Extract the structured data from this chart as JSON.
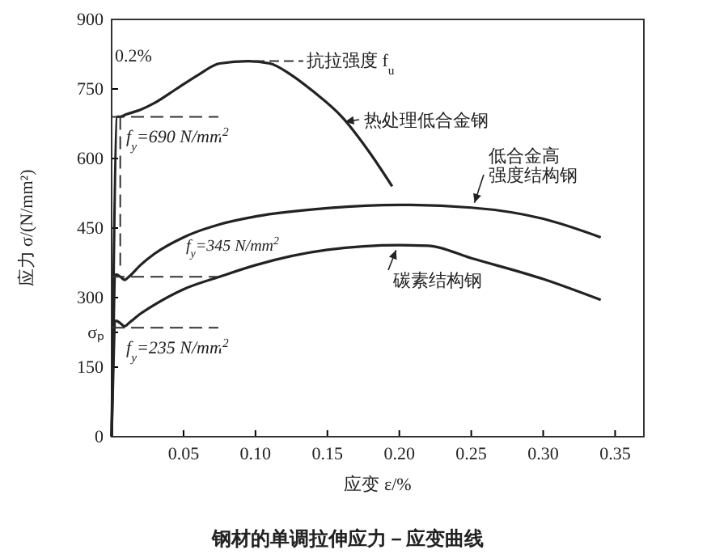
{
  "chart_data": {
    "type": "line",
    "title": "钢材的单调拉伸应力－应变曲线",
    "xlabel": "应变 ε/%",
    "ylabel": "应力 σ/(N/mm²)",
    "xlim": [
      0,
      0.37
    ],
    "xticks": [
      {
        "value": 0.05,
        "label": "0.05"
      },
      {
        "value": 0.1,
        "label": "0.10"
      },
      {
        "value": 0.15,
        "label": "0.15"
      },
      {
        "value": 0.2,
        "label": "0.20"
      },
      {
        "value": 0.25,
        "label": "0.25"
      },
      {
        "value": 0.3,
        "label": "0.30"
      },
      {
        "value": 0.35,
        "label": "0.35"
      }
    ],
    "ylim": [
      0,
      900
    ],
    "yticks": [
      0,
      150,
      {
        "value": 225,
        "label": "σₚ"
      },
      300,
      450,
      600,
      750,
      900
    ],
    "grid": false,
    "legend": "right",
    "marker": "none",
    "line_style": "solid",
    "series": [
      {
        "name": "热处理低合金钢",
        "color": "#222222",
        "x": [
          0,
          0.004,
          0.006,
          0.01,
          0.02,
          0.03,
          0.045,
          0.06,
          0.075,
          0.095,
          0.11,
          0.125,
          0.14,
          0.16,
          0.18,
          0.195
        ],
        "values": [
          0,
          690,
          690,
          695,
          705,
          720,
          750,
          780,
          805,
          810,
          805,
          780,
          745,
          690,
          610,
          540
        ]
      },
      {
        "name": "低合金高强度结构钢",
        "color": "#222222",
        "x": [
          0,
          0.003,
          0.006,
          0.009,
          0.012,
          0.02,
          0.03,
          0.05,
          0.075,
          0.1,
          0.15,
          0.2,
          0.25,
          0.3,
          0.34
        ],
        "values": [
          0,
          350,
          345,
          338,
          345,
          370,
          395,
          430,
          458,
          475,
          493,
          500,
          494,
          470,
          430
        ]
      },
      {
        "name": "碳素结构钢",
        "color": "#222222",
        "x": [
          0,
          0.003,
          0.006,
          0.009,
          0.012,
          0.02,
          0.03,
          0.05,
          0.075,
          0.1,
          0.15,
          0.2,
          0.22,
          0.25,
          0.3,
          0.34
        ],
        "values": [
          0,
          250,
          245,
          238,
          245,
          265,
          285,
          318,
          345,
          370,
          403,
          413,
          412,
          385,
          340,
          295
        ]
      }
    ],
    "annotations": [
      {
        "text": "f$_{y}$=690 N/mm$^{2}$",
        "x": 0.004,
        "y": 690
      },
      {
        "text": "f$_{y}$=345 N/mm$^{2}$",
        "x": 0.003,
        "y": 345
      },
      {
        "text": "f$_{y}$=235 N/mm$^{2}$",
        "x": 0.003,
        "y": 235
      },
      {
        "text": "抗拉强度 f$_{u}$",
        "x": 0.095,
        "y": 810
      },
      {
        "text": "0.2%",
        "x": 0.006,
        "y": 690
      }
    ]
  }
}
